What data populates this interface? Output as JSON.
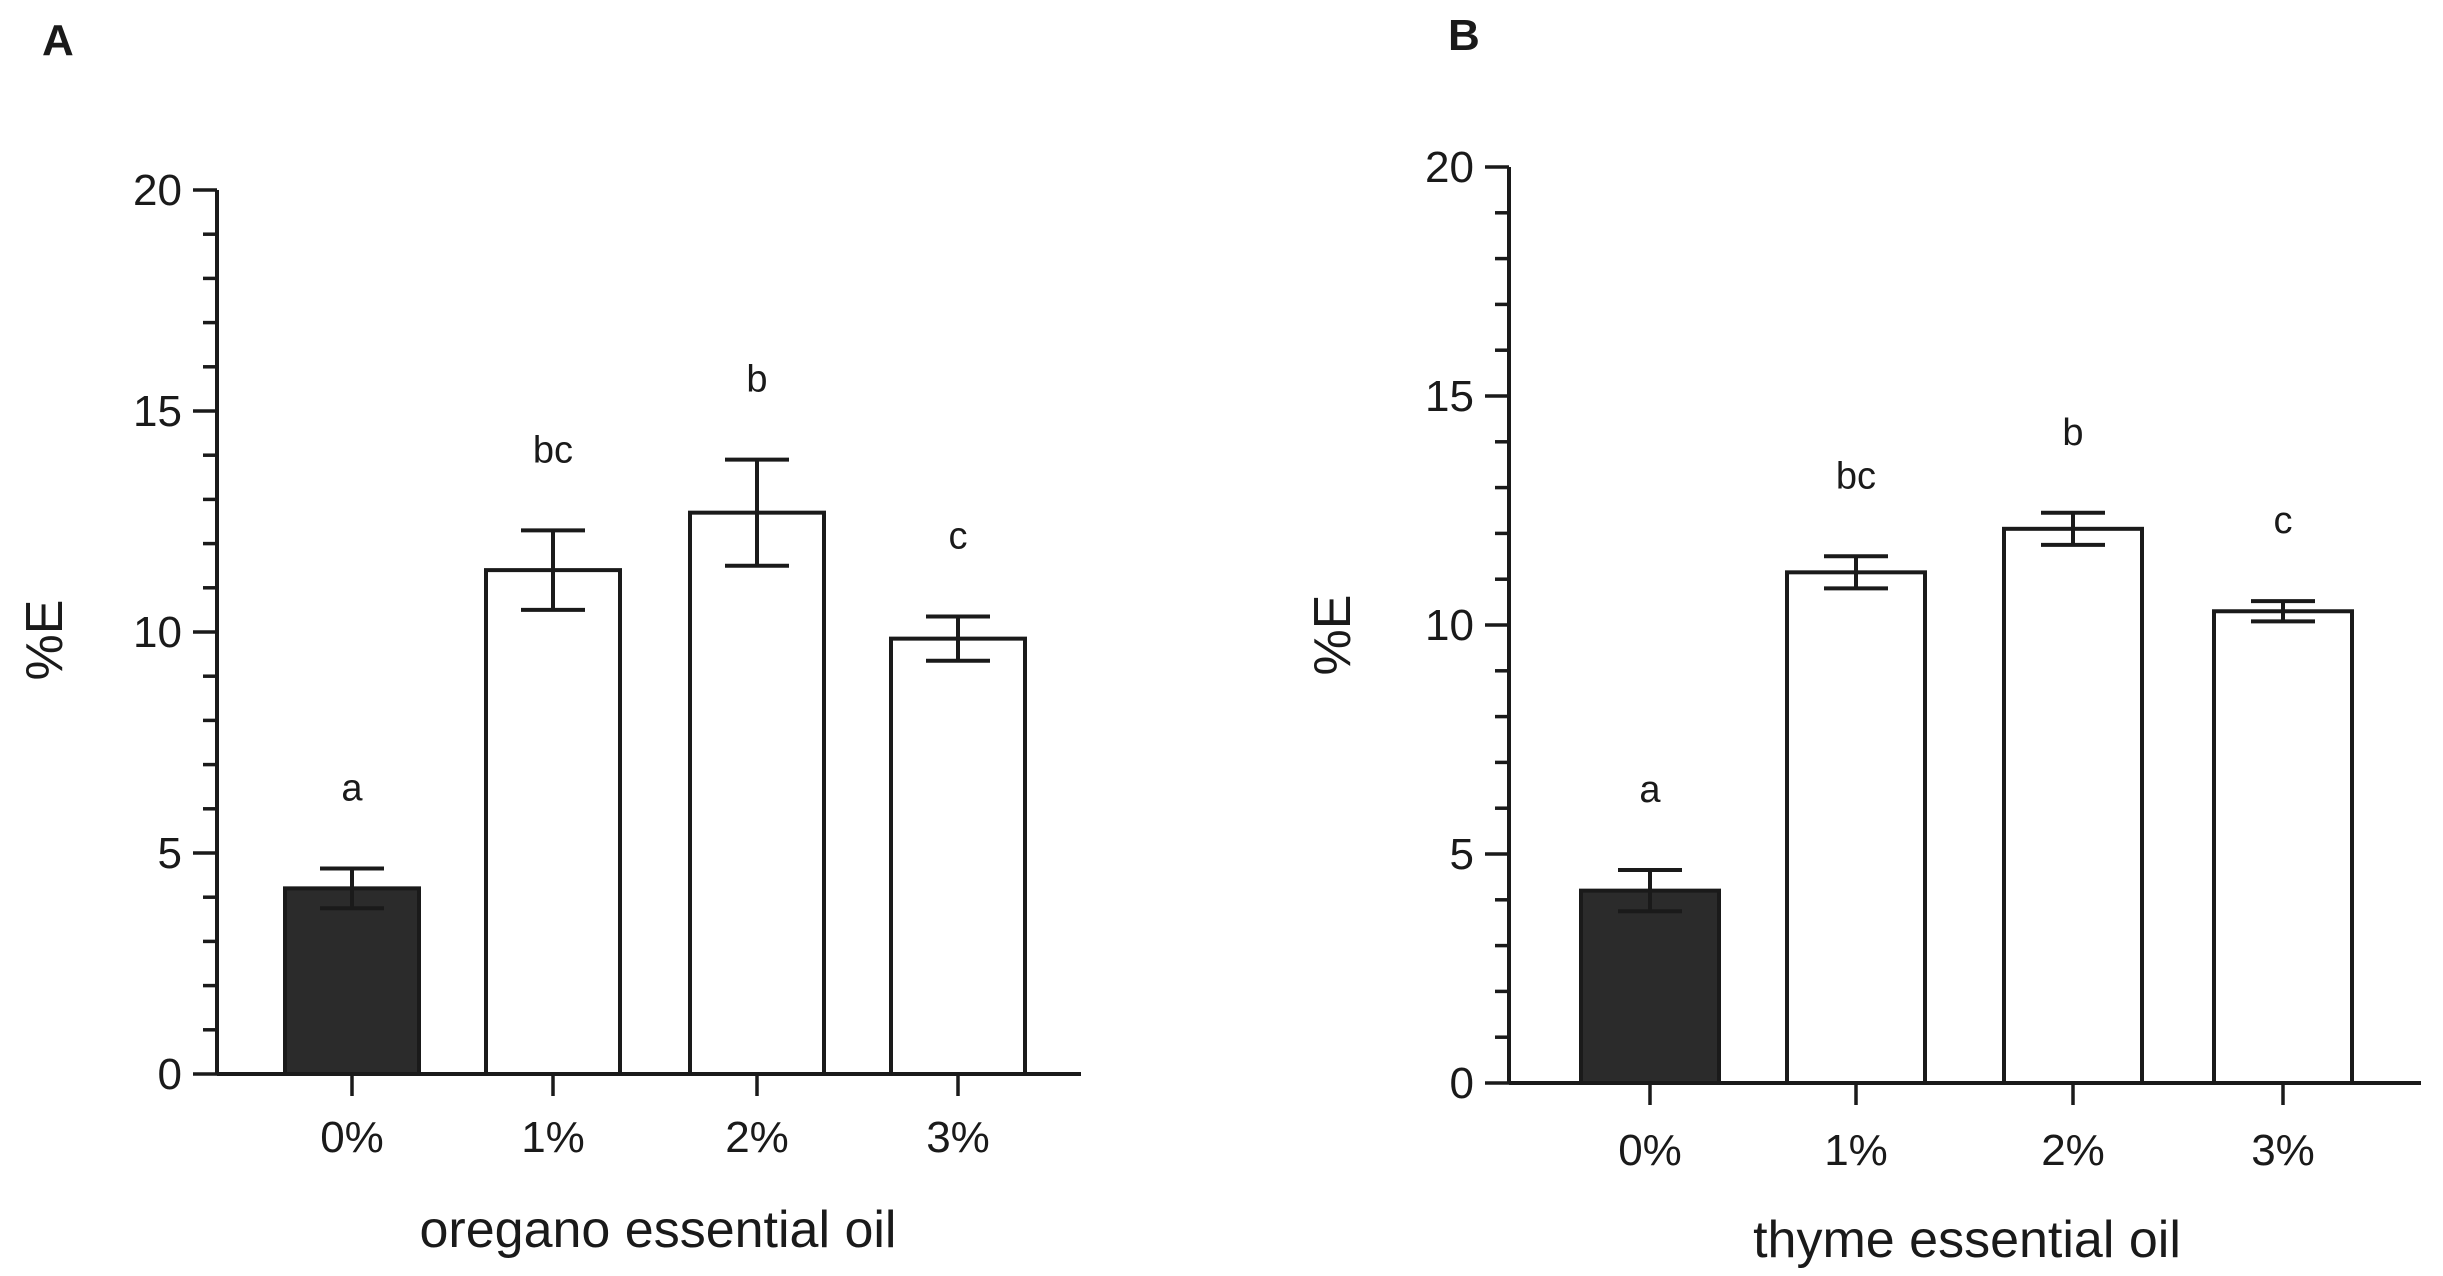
{
  "chart_data": [
    {
      "type": "bar",
      "panel": "A",
      "categories": [
        "0%",
        "1%",
        "2%",
        "3%"
      ],
      "values": [
        4.2,
        11.4,
        12.7,
        9.85
      ],
      "errors": [
        0.45,
        0.9,
        1.2,
        0.5
      ],
      "significance": [
        "a",
        "bc",
        "b",
        "c"
      ],
      "bar_colors": [
        "#2b2b2b",
        "#ffffff",
        "#ffffff",
        "#ffffff"
      ],
      "title": "",
      "xlabel": "oregano essential oil",
      "ylabel": "%E",
      "ylim": [
        0,
        20
      ],
      "yticks": [
        0,
        5,
        10,
        15,
        20
      ],
      "minor_step": 1
    },
    {
      "type": "bar",
      "panel": "B",
      "categories": [
        "0%",
        "1%",
        "2%",
        "3%"
      ],
      "values": [
        4.2,
        11.15,
        12.1,
        10.3
      ],
      "errors": [
        0.45,
        0.35,
        0.35,
        0.22
      ],
      "significance": [
        "a",
        "bc",
        "b",
        "c"
      ],
      "bar_colors": [
        "#2b2b2b",
        "#ffffff",
        "#ffffff",
        "#ffffff"
      ],
      "title": "",
      "xlabel": "thyme essential oil",
      "ylabel": "%E",
      "ylim": [
        0,
        20
      ],
      "yticks": [
        0,
        5,
        10,
        15,
        20
      ],
      "minor_step": 1
    }
  ]
}
